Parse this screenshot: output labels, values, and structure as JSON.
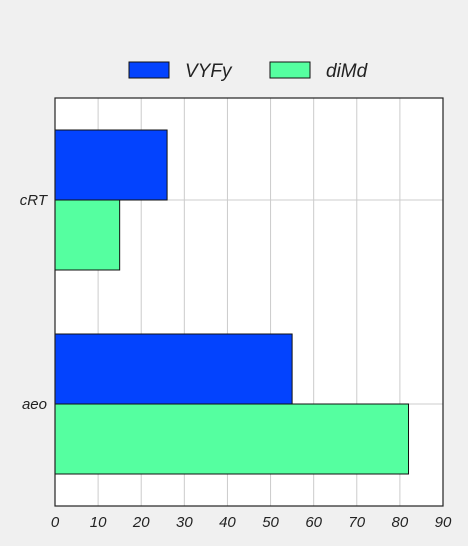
{
  "chart_data": {
    "type": "bar",
    "orientation": "horizontal",
    "categories": [
      "cRT",
      "aeo"
    ],
    "series": [
      {
        "name": "VYFy",
        "values": [
          26,
          55
        ],
        "color": "#0343fe"
      },
      {
        "name": "diMd",
        "values": [
          15,
          82
        ],
        "color": "#55ffa0"
      }
    ],
    "xlim": [
      0,
      90
    ],
    "xticks": [
      0,
      10,
      20,
      30,
      40,
      50,
      60,
      70,
      80,
      90
    ],
    "grid": true,
    "legend_position": "top-center"
  }
}
